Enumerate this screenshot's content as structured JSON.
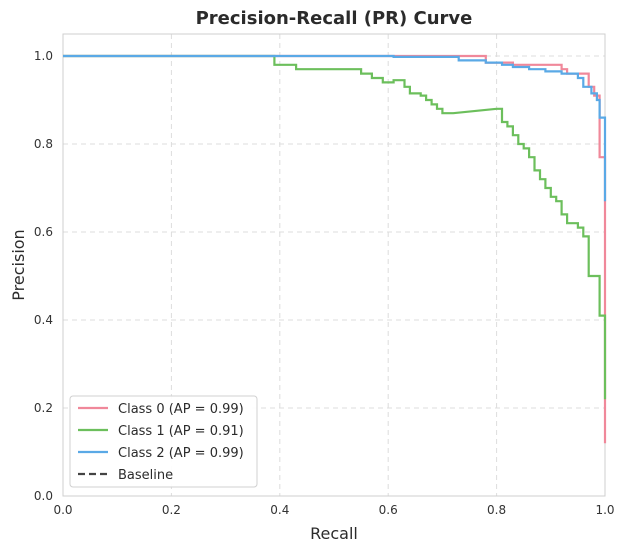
{
  "chart_data": {
    "type": "line",
    "title": "Precision-Recall (PR) Curve",
    "xlabel": "Recall",
    "ylabel": "Precision",
    "xlim": [
      0,
      1
    ],
    "ylim": [
      0,
      1.05
    ],
    "xticks": [
      "0.0",
      "0.2",
      "0.4",
      "0.6",
      "0.8",
      "1.0"
    ],
    "yticks": [
      "0.0",
      "0.2",
      "0.4",
      "0.6",
      "0.8",
      "1.0"
    ],
    "grid": true,
    "grid_style": "dashed",
    "legend_position": "lower-left",
    "series": [
      {
        "name": "Class 0 (AP = 0.99)",
        "color": "#f0889a",
        "points": [
          [
            0.0,
            1.0
          ],
          [
            0.78,
            1.0
          ],
          [
            0.78,
            0.985
          ],
          [
            0.83,
            0.985
          ],
          [
            0.83,
            0.98
          ],
          [
            0.92,
            0.98
          ],
          [
            0.92,
            0.97
          ],
          [
            0.93,
            0.97
          ],
          [
            0.93,
            0.96
          ],
          [
            0.97,
            0.96
          ],
          [
            0.97,
            0.93
          ],
          [
            0.98,
            0.93
          ],
          [
            0.98,
            0.91
          ],
          [
            0.99,
            0.91
          ],
          [
            0.99,
            0.77
          ],
          [
            1.0,
            0.77
          ],
          [
            1.0,
            0.12
          ]
        ]
      },
      {
        "name": "Class 1 (AP = 0.91)",
        "color": "#6cbf5c",
        "points": [
          [
            0.0,
            1.0
          ],
          [
            0.39,
            1.0
          ],
          [
            0.39,
            0.98
          ],
          [
            0.43,
            0.98
          ],
          [
            0.43,
            0.97
          ],
          [
            0.55,
            0.97
          ],
          [
            0.55,
            0.96
          ],
          [
            0.57,
            0.96
          ],
          [
            0.57,
            0.95
          ],
          [
            0.59,
            0.95
          ],
          [
            0.59,
            0.94
          ],
          [
            0.61,
            0.94
          ],
          [
            0.61,
            0.945
          ],
          [
            0.63,
            0.945
          ],
          [
            0.63,
            0.93
          ],
          [
            0.64,
            0.93
          ],
          [
            0.64,
            0.915
          ],
          [
            0.66,
            0.915
          ],
          [
            0.66,
            0.91
          ],
          [
            0.67,
            0.91
          ],
          [
            0.67,
            0.9
          ],
          [
            0.68,
            0.9
          ],
          [
            0.68,
            0.89
          ],
          [
            0.69,
            0.89
          ],
          [
            0.69,
            0.88
          ],
          [
            0.7,
            0.88
          ],
          [
            0.7,
            0.87
          ],
          [
            0.72,
            0.87
          ],
          [
            0.8,
            0.88
          ],
          [
            0.81,
            0.88
          ],
          [
            0.81,
            0.85
          ],
          [
            0.82,
            0.85
          ],
          [
            0.82,
            0.84
          ],
          [
            0.83,
            0.84
          ],
          [
            0.83,
            0.82
          ],
          [
            0.84,
            0.82
          ],
          [
            0.84,
            0.8
          ],
          [
            0.85,
            0.8
          ],
          [
            0.85,
            0.79
          ],
          [
            0.86,
            0.79
          ],
          [
            0.86,
            0.77
          ],
          [
            0.87,
            0.77
          ],
          [
            0.87,
            0.74
          ],
          [
            0.88,
            0.74
          ],
          [
            0.88,
            0.72
          ],
          [
            0.89,
            0.72
          ],
          [
            0.89,
            0.7
          ],
          [
            0.9,
            0.7
          ],
          [
            0.9,
            0.68
          ],
          [
            0.91,
            0.68
          ],
          [
            0.91,
            0.67
          ],
          [
            0.92,
            0.67
          ],
          [
            0.92,
            0.64
          ],
          [
            0.93,
            0.64
          ],
          [
            0.93,
            0.62
          ],
          [
            0.95,
            0.62
          ],
          [
            0.95,
            0.61
          ],
          [
            0.96,
            0.61
          ],
          [
            0.96,
            0.59
          ],
          [
            0.97,
            0.59
          ],
          [
            0.97,
            0.5
          ],
          [
            0.99,
            0.5
          ],
          [
            0.99,
            0.41
          ],
          [
            1.0,
            0.41
          ],
          [
            1.0,
            0.22
          ]
        ]
      },
      {
        "name": "Class 2 (AP = 0.99)",
        "color": "#5aa9e6",
        "points": [
          [
            0.0,
            1.0
          ],
          [
            0.61,
            1.0
          ],
          [
            0.61,
            0.998
          ],
          [
            0.73,
            0.998
          ],
          [
            0.73,
            0.99
          ],
          [
            0.78,
            0.99
          ],
          [
            0.78,
            0.985
          ],
          [
            0.81,
            0.985
          ],
          [
            0.81,
            0.98
          ],
          [
            0.83,
            0.98
          ],
          [
            0.83,
            0.975
          ],
          [
            0.86,
            0.975
          ],
          [
            0.86,
            0.97
          ],
          [
            0.89,
            0.97
          ],
          [
            0.89,
            0.965
          ],
          [
            0.92,
            0.965
          ],
          [
            0.92,
            0.96
          ],
          [
            0.95,
            0.96
          ],
          [
            0.95,
            0.95
          ],
          [
            0.96,
            0.95
          ],
          [
            0.96,
            0.93
          ],
          [
            0.975,
            0.93
          ],
          [
            0.975,
            0.915
          ],
          [
            0.985,
            0.915
          ],
          [
            0.985,
            0.9
          ],
          [
            0.99,
            0.9
          ],
          [
            0.99,
            0.86
          ],
          [
            1.0,
            0.86
          ],
          [
            1.0,
            0.82
          ],
          [
            1.0,
            0.67
          ]
        ]
      },
      {
        "name": "Baseline",
        "color": "#444444",
        "dashed": true,
        "points": []
      }
    ]
  }
}
